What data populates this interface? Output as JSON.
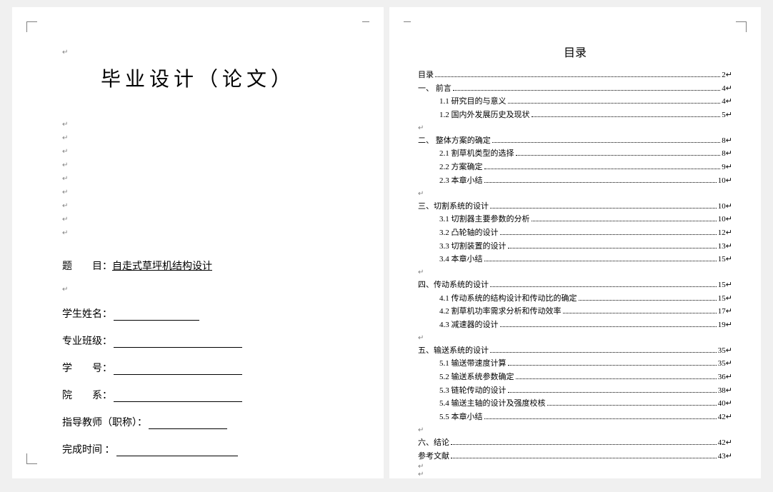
{
  "left_page": {
    "main_title": "毕业设计（论文）",
    "topic_label": "题　　目：",
    "topic_value": "自走式草坪机结构设计",
    "fields": [
      {
        "label": "学生姓名：",
        "line_width": 120
      },
      {
        "label": "专业班级：",
        "line_width": 180
      },
      {
        "label": "学　　号：",
        "line_width": 180
      },
      {
        "label": "院　　系：",
        "line_width": 180
      },
      {
        "label": "指导教师（职称）：",
        "line_width": 110
      },
      {
        "label": "完成时间  ：",
        "line_width": 170
      }
    ]
  },
  "right_page": {
    "toc_title": "目录",
    "entries": [
      {
        "label": "目录",
        "page": "2",
        "indent": 0
      },
      {
        "label": "一、 前言",
        "page": "4",
        "indent": 0
      },
      {
        "label": "1.1  研究目的与意义",
        "page": "4",
        "indent": 1
      },
      {
        "label": "1.2  国内外发展历史及现状",
        "page": "5",
        "indent": 1
      },
      {
        "label": "二、 整体方案的确定",
        "page": "8",
        "indent": 0
      },
      {
        "label": "2.1 割草机类型的选择",
        "page": "8",
        "indent": 1
      },
      {
        "label": "2.2 方案确定",
        "page": "9",
        "indent": 1
      },
      {
        "label": "2.3 本章小结",
        "page": "10",
        "indent": 1
      },
      {
        "label": "三、切割系统的设计",
        "page": "10",
        "indent": 0
      },
      {
        "label": "3.1 切割器主要参数的分析",
        "page": "10",
        "indent": 1
      },
      {
        "label": "3.2 凸轮轴的设计",
        "page": "12",
        "indent": 1
      },
      {
        "label": "3.3 切割装置的设计",
        "page": "13",
        "indent": 1
      },
      {
        "label": "3.4 本章小结",
        "page": "15",
        "indent": 1
      },
      {
        "label": "四、传动系统的设计",
        "page": "15",
        "indent": 0
      },
      {
        "label": "4.1 传动系统的结构设计和传动比的确定",
        "page": "15",
        "indent": 1
      },
      {
        "label": "4.2 割草机功率需求分析和传动效率",
        "page": "17",
        "indent": 1
      },
      {
        "label": "4.3 减速器的设计",
        "page": "19",
        "indent": 1
      },
      {
        "label": "五、输送系统的设计",
        "page": "35",
        "indent": 0
      },
      {
        "label": "5.1 输送带速度计算",
        "page": "35",
        "indent": 1
      },
      {
        "label": "5.2 输送系统参数确定",
        "page": "36",
        "indent": 1
      },
      {
        "label": "5.3 链轮传动的设计",
        "page": "38",
        "indent": 1
      },
      {
        "label": "5.4 输送主轴的设计及强度校核",
        "page": "40",
        "indent": 1
      },
      {
        "label": "5.5 本章小结",
        "page": "42",
        "indent": 1
      },
      {
        "label": "六、结论",
        "page": "42",
        "indent": 0
      },
      {
        "label": "参考文献",
        "page": "43",
        "indent": 0
      }
    ]
  }
}
